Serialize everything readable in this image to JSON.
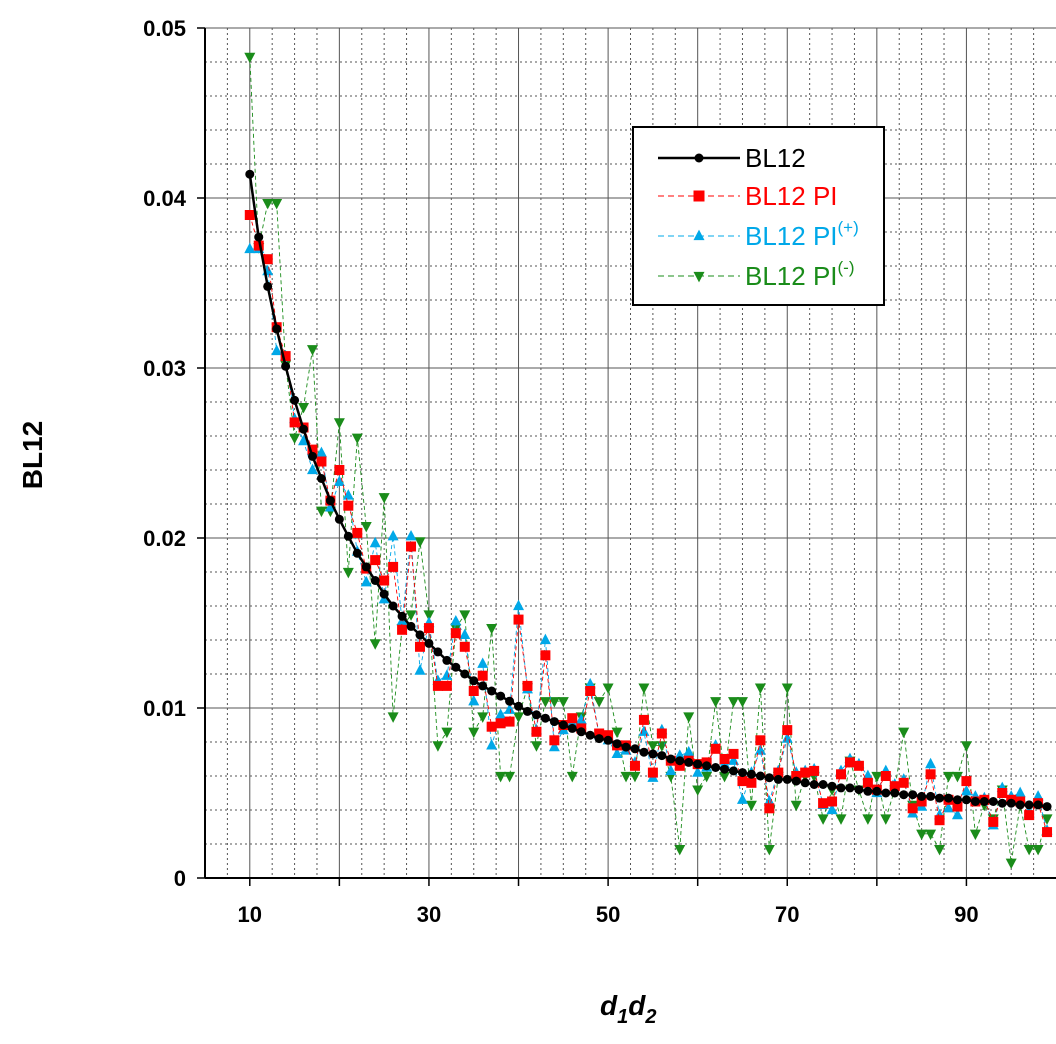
{
  "chart_data": {
    "type": "line",
    "xlabel_main_1": "d",
    "xlabel_sub_1": "1",
    "xlabel_main_2": "d",
    "xlabel_sub_2": "2",
    "ylabel": "BL12",
    "xlim": [
      5,
      100
    ],
    "ylim": [
      0,
      0.05
    ],
    "xticks": [
      10,
      30,
      50,
      70,
      90
    ],
    "xtick_labels": [
      "10",
      "30",
      "50",
      "70",
      "90"
    ],
    "yticks": [
      0,
      0.01,
      0.02,
      0.03,
      0.04,
      0.05
    ],
    "ytick_labels": [
      "0",
      "0.01",
      "0.02",
      "0.03",
      "0.04",
      "0.05"
    ],
    "grid": true,
    "legend_position": "top-right",
    "x": [
      10,
      11,
      12,
      13,
      14,
      15,
      16,
      17,
      18,
      19,
      20,
      21,
      22,
      23,
      24,
      25,
      26,
      27,
      28,
      29,
      30,
      31,
      32,
      33,
      34,
      35,
      36,
      37,
      38,
      39,
      40,
      41,
      42,
      43,
      44,
      45,
      46,
      47,
      48,
      49,
      50,
      51,
      52,
      53,
      54,
      55,
      56,
      57,
      58,
      59,
      60,
      61,
      62,
      63,
      64,
      65,
      66,
      67,
      68,
      69,
      70,
      71,
      72,
      73,
      74,
      75,
      76,
      77,
      78,
      79,
      80,
      81,
      82,
      83,
      84,
      85,
      86,
      87,
      88,
      89,
      90,
      91,
      92,
      93,
      94,
      95,
      96,
      97,
      98,
      99
    ],
    "series": [
      {
        "name": "BL12",
        "legend_main": "BL12",
        "legend_sup": "",
        "color": "#000000",
        "marker": "circle",
        "line": "solid",
        "values": [
          0.0414,
          0.0377,
          0.0348,
          0.0323,
          0.0301,
          0.0281,
          0.0264,
          0.0248,
          0.0235,
          0.0222,
          0.0211,
          0.0201,
          0.0191,
          0.0183,
          0.0175,
          0.0167,
          0.016,
          0.0154,
          0.0148,
          0.0143,
          0.0138,
          0.0133,
          0.0128,
          0.0124,
          0.012,
          0.0116,
          0.0113,
          0.011,
          0.0107,
          0.0104,
          0.0101,
          0.0098,
          0.0096,
          0.0094,
          0.0092,
          0.009,
          0.0088,
          0.0086,
          0.0084,
          0.0082,
          0.0081,
          0.0079,
          0.0077,
          0.0076,
          0.0074,
          0.0073,
          0.0072,
          0.007,
          0.0069,
          0.0068,
          0.0067,
          0.0066,
          0.0065,
          0.0064,
          0.0063,
          0.0062,
          0.0061,
          0.006,
          0.0059,
          0.0058,
          0.0058,
          0.0057,
          0.0056,
          0.0055,
          0.0055,
          0.0054,
          0.0053,
          0.0053,
          0.0052,
          0.0051,
          0.0051,
          0.005,
          0.005,
          0.0049,
          0.0049,
          0.0048,
          0.0048,
          0.0047,
          0.0047,
          0.0046,
          0.0046,
          0.0045,
          0.0045,
          0.0045,
          0.0044,
          0.0044,
          0.0043,
          0.0043,
          0.0043,
          0.0042
        ]
      },
      {
        "name": "BL12 PI",
        "legend_main": "BL12 PI",
        "legend_sup": "",
        "color": "#ff0000",
        "marker": "square",
        "line": "dashed",
        "values": [
          0.039,
          0.0372,
          0.0364,
          0.0324,
          0.0307,
          0.0268,
          0.0265,
          0.0252,
          0.0245,
          0.0222,
          0.024,
          0.0219,
          0.0203,
          0.0182,
          0.0187,
          0.0175,
          0.0183,
          0.0146,
          0.0195,
          0.0136,
          0.0147,
          0.0113,
          0.0113,
          0.0144,
          0.0136,
          0.011,
          0.0119,
          0.0089,
          0.0091,
          0.0092,
          0.0152,
          0.0113,
          0.0086,
          0.0131,
          0.0081,
          0.009,
          0.0094,
          0.0088,
          0.011,
          0.0085,
          0.0084,
          0.0078,
          0.0078,
          0.0066,
          0.0093,
          0.0062,
          0.0085,
          0.0069,
          0.0066,
          0.0069,
          0.0067,
          0.0068,
          0.0076,
          0.007,
          0.0073,
          0.0057,
          0.0056,
          0.0081,
          0.0041,
          0.0062,
          0.0087,
          0.006,
          0.0062,
          0.0063,
          0.0044,
          0.0045,
          0.0061,
          0.0068,
          0.0066,
          0.0056,
          0.0052,
          0.006,
          0.0054,
          0.0056,
          0.0041,
          0.0045,
          0.0061,
          0.0034,
          0.0046,
          0.0042,
          0.0057,
          0.0045,
          0.0046,
          0.0033,
          0.005,
          0.0046,
          0.0045,
          0.0037,
          0.0044,
          0.0027
        ]
      },
      {
        "name": "BL12 PI(+)",
        "legend_main": "BL12 PI",
        "legend_sup": "(+)",
        "color": "#00a8e8",
        "marker": "triangle-up",
        "line": "dashed",
        "values": [
          0.037,
          0.037,
          0.0357,
          0.031,
          0.0307,
          0.027,
          0.0257,
          0.024,
          0.025,
          0.0218,
          0.0233,
          0.0225,
          0.0192,
          0.0174,
          0.0197,
          0.0164,
          0.0201,
          0.0151,
          0.0201,
          0.0122,
          0.015,
          0.0116,
          0.0119,
          0.0151,
          0.0143,
          0.0104,
          0.0126,
          0.0078,
          0.0096,
          0.0099,
          0.016,
          0.0111,
          0.0087,
          0.014,
          0.0077,
          0.0087,
          0.0091,
          0.0093,
          0.0114,
          0.0084,
          0.0081,
          0.0073,
          0.0075,
          0.0068,
          0.0086,
          0.0059,
          0.0087,
          0.0063,
          0.0072,
          0.0074,
          0.0062,
          0.0065,
          0.0078,
          0.0067,
          0.0069,
          0.0046,
          0.0062,
          0.0075,
          0.0045,
          0.0063,
          0.0082,
          0.0062,
          0.0063,
          0.0064,
          0.0043,
          0.004,
          0.0063,
          0.007,
          0.0067,
          0.006,
          0.005,
          0.0063,
          0.0055,
          0.0058,
          0.0038,
          0.0042,
          0.0067,
          0.0037,
          0.0041,
          0.0037,
          0.0051,
          0.0048,
          0.0047,
          0.0031,
          0.0053,
          0.0048,
          0.005,
          0.0038,
          0.0048,
          0.0028
        ]
      },
      {
        "name": "BL12 PI(-)",
        "legend_main": "BL12 PI",
        "legend_sup": "(-)",
        "color": "#1a8c1a",
        "marker": "triangle-down",
        "line": "dashed",
        "values": [
          0.0483,
          0.0371,
          0.0397,
          0.0397,
          0.0302,
          0.0259,
          0.0277,
          0.0311,
          0.0216,
          0.0216,
          0.0268,
          0.018,
          0.0259,
          0.0207,
          0.0138,
          0.0224,
          0.0095,
          0.0147,
          0.0155,
          0.0198,
          0.0155,
          0.0078,
          0.0086,
          0.0147,
          0.0155,
          0.0086,
          0.0095,
          0.0147,
          0.006,
          0.006,
          0.0095,
          0.0112,
          0.0078,
          0.0104,
          0.0104,
          0.0104,
          0.006,
          0.0095,
          0.0112,
          0.0104,
          0.0112,
          0.0086,
          0.006,
          0.006,
          0.0112,
          0.0078,
          0.0078,
          0.006,
          0.0017,
          0.0095,
          0.0052,
          0.006,
          0.0104,
          0.006,
          0.0104,
          0.0104,
          0.0043,
          0.0112,
          0.0017,
          0.006,
          0.0112,
          0.0043,
          0.006,
          0.006,
          0.0035,
          0.0052,
          0.0035,
          0.0069,
          0.0052,
          0.0035,
          0.006,
          0.0035,
          0.0052,
          0.0086,
          0.0043,
          0.0026,
          0.0026,
          0.0017,
          0.006,
          0.006,
          0.0078,
          0.0026,
          0.0043,
          0.0035,
          0.0052,
          0.0009,
          0.0043,
          0.0017,
          0.0017,
          0.0035
        ]
      }
    ]
  }
}
